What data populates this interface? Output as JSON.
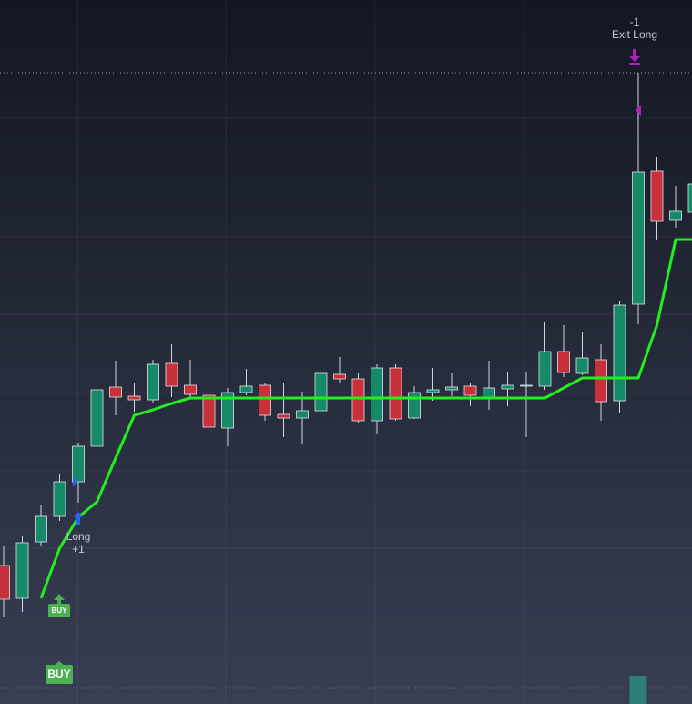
{
  "chart_data": {
    "type": "candlestick",
    "open": [
      152,
      116,
      178,
      206,
      244,
      283,
      348,
      338,
      334,
      374,
      350,
      339,
      303,
      342,
      350,
      318,
      314,
      322,
      362,
      357,
      311,
      369,
      314,
      342,
      345,
      349,
      337,
      346,
      349,
      349,
      387,
      363,
      378,
      333,
      439,
      585,
      531,
      540
    ],
    "high": [
      173,
      185,
      218,
      253,
      287,
      355,
      377,
      353,
      378,
      395,
      378,
      343,
      347,
      368,
      353,
      353,
      343,
      377,
      381,
      363,
      373,
      373,
      349,
      369,
      363,
      353,
      377,
      365,
      365,
      419,
      416,
      408,
      395,
      443,
      693,
      601,
      569,
      583
    ],
    "low": [
      95,
      101,
      173,
      201,
      221,
      276,
      317,
      321,
      330,
      337,
      335,
      301,
      283,
      339,
      311,
      293,
      285,
      321,
      353,
      308,
      297,
      311,
      313,
      333,
      338,
      327,
      323,
      327,
      293,
      345,
      359,
      361,
      311,
      319,
      417,
      509,
      523,
      511
    ],
    "close": [
      115,
      177,
      206,
      244,
      283,
      345,
      337,
      334,
      373,
      349,
      340,
      304,
      342,
      349,
      317,
      314,
      322,
      363,
      357,
      311,
      369,
      313,
      342,
      345,
      348,
      339,
      347,
      350,
      350,
      387,
      364,
      380,
      332,
      438,
      584,
      530,
      541,
      571
    ],
    "up_color": "#168a68",
    "down_color": "#c8303a",
    "ylim": [
      0,
      773
    ],
    "stop_line": {
      "color": "#22ee22",
      "values": [
        null,
        null,
        116,
        171,
        205,
        222,
        270,
        317,
        323,
        330,
        336,
        336,
        336,
        336,
        336,
        336,
        336,
        336,
        336,
        336,
        336,
        336,
        336,
        336,
        336,
        336,
        336,
        336,
        336,
        336,
        347,
        358,
        358,
        358,
        358,
        416,
        510,
        510
      ]
    },
    "volume": {
      "color": "#2e7f7c",
      "y2lim": [
        0,
        773
      ],
      "values": [
        null,
        null,
        null,
        null,
        null,
        null,
        null,
        null,
        null,
        null,
        null,
        null,
        null,
        null,
        null,
        null,
        null,
        null,
        null,
        null,
        null,
        null,
        null,
        null,
        null,
        null,
        null,
        null,
        null,
        null,
        null,
        null,
        null,
        null,
        31,
        null,
        null,
        null
      ]
    },
    "annotations": {
      "exit_count": "-1",
      "exit_label": "Exit Long",
      "long_label": "Long",
      "long_count": "+1",
      "buy_small": "BUY",
      "buy": "BUY"
    }
  }
}
